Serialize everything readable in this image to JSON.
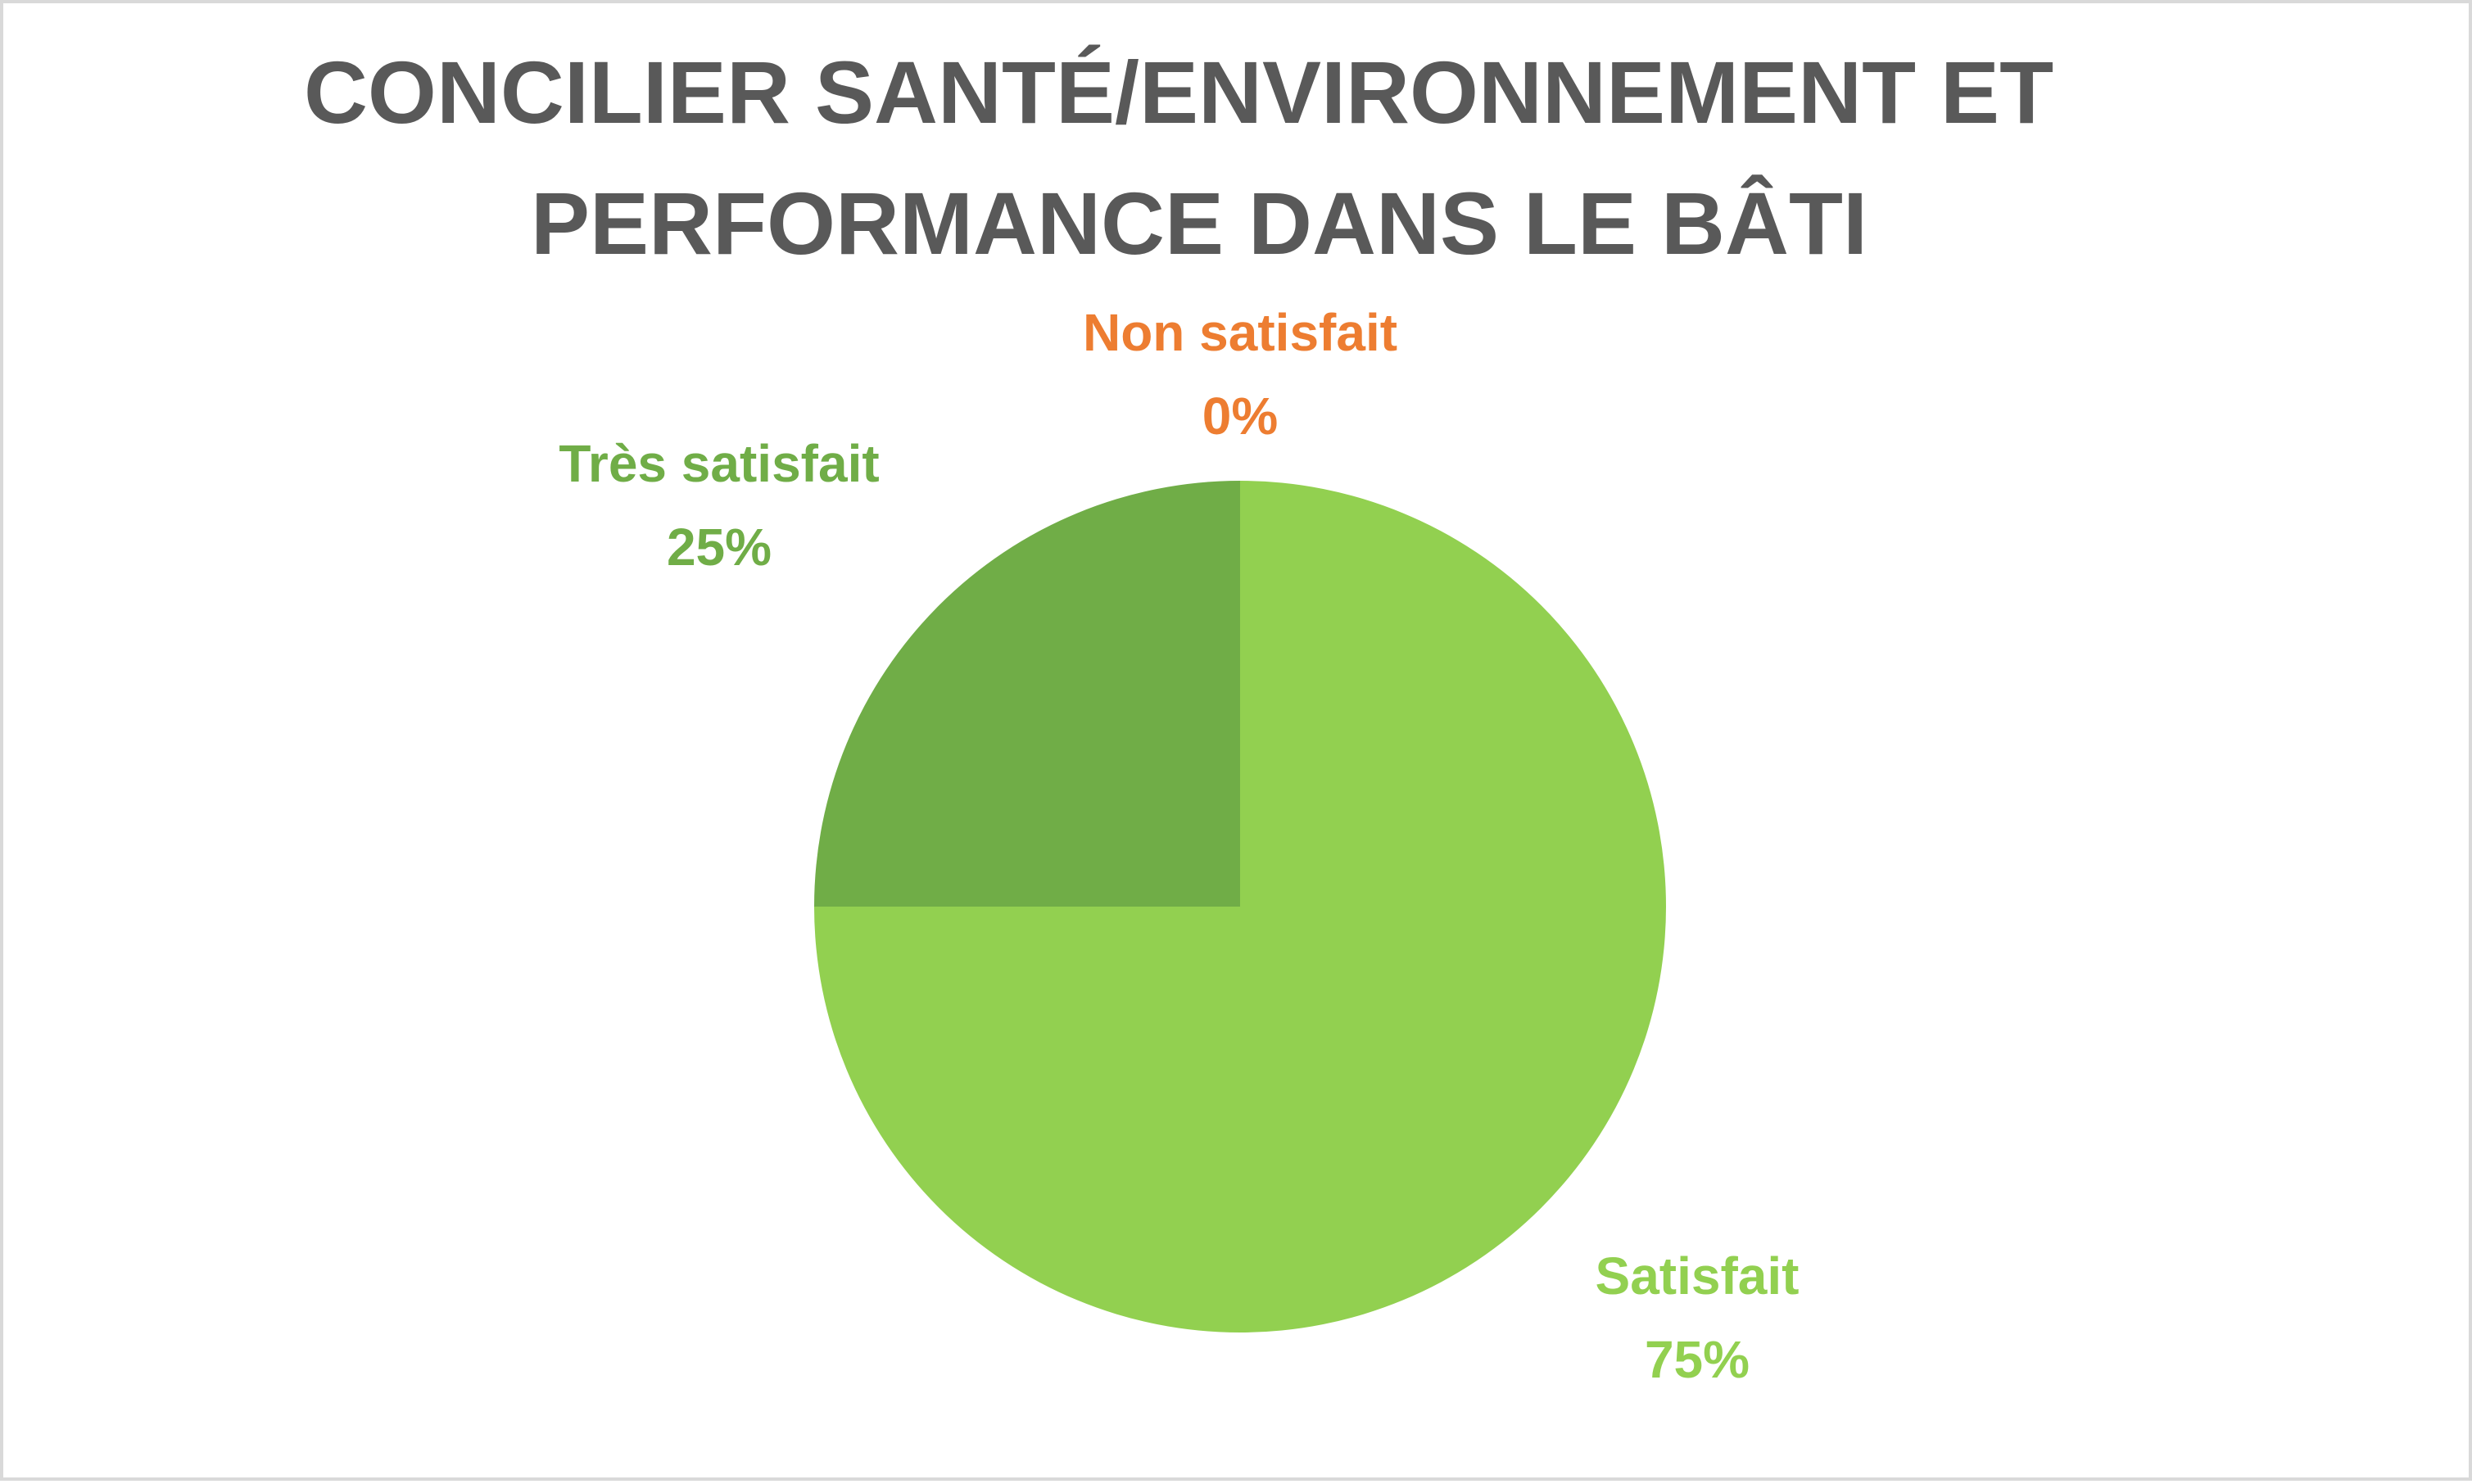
{
  "chart_data": {
    "type": "pie",
    "title_lines": [
      "CONCILIER SANTÉ/ENVIRONNEMENT ET",
      "PERFORMANCE DANS LE BÂTI"
    ],
    "slices": [
      {
        "name": "Non satisfait",
        "value": 0,
        "label": "0%",
        "color": "#ed7d31"
      },
      {
        "name": "Satisfait",
        "value": 75,
        "label": "75%",
        "color": "#92d050"
      },
      {
        "name": "Très satisfait",
        "value": 25,
        "label": "25%",
        "color": "#70ad47"
      }
    ],
    "title_color": "#595959",
    "legend": "none",
    "data_labels": "outside"
  }
}
